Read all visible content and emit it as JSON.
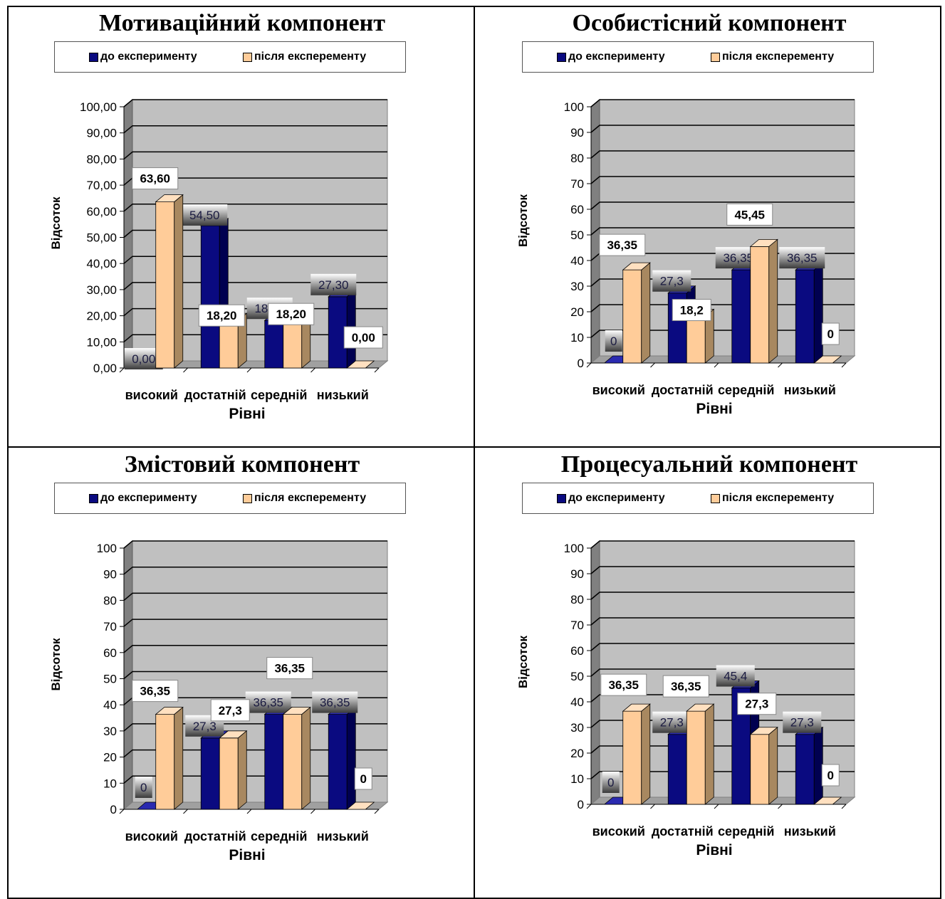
{
  "legend": {
    "before": "до експерименту",
    "after": "після експеременту",
    "before_color": "#0a0a80",
    "after_color": "#ffcc99"
  },
  "chart_data": [
    {
      "type": "bar",
      "title": "Мотиваційний компонент",
      "xlabel": "Рівні",
      "ylabel": "Відсоток",
      "categories": [
        "високий",
        "достатній",
        "середній",
        "низький"
      ],
      "ylim": [
        0,
        100
      ],
      "yticks": [
        "0,00",
        "10,00",
        "20,00",
        "30,00",
        "40,00",
        "50,00",
        "60,00",
        "70,00",
        "80,00",
        "90,00",
        "100,00"
      ],
      "series": [
        {
          "name": "до експерименту",
          "values": [
            0,
            54.5,
            18.2,
            27.3
          ],
          "labels": [
            "0,00",
            "54,50",
            "18,20",
            "27,30"
          ]
        },
        {
          "name": "після експеременту",
          "values": [
            63.6,
            18.2,
            18.2,
            0
          ],
          "labels": [
            "63,60",
            "18,20",
            "18,20",
            "0,00"
          ]
        }
      ]
    },
    {
      "type": "bar",
      "title": "Особистісний компонент",
      "xlabel": "Рівні",
      "ylabel": "Відсоток",
      "categories": [
        "високий",
        "достатній",
        "середній",
        "низький"
      ],
      "ylim": [
        0,
        100
      ],
      "yticks": [
        "0",
        "10",
        "20",
        "30",
        "40",
        "50",
        "60",
        "70",
        "80",
        "90",
        "100"
      ],
      "series": [
        {
          "name": "до експерименту",
          "values": [
            0,
            27.3,
            36.35,
            36.35
          ],
          "labels": [
            "0",
            "27,3",
            "36,35",
            "36,35"
          ]
        },
        {
          "name": "після експеременту",
          "values": [
            36.35,
            18.2,
            45.45,
            0
          ],
          "labels": [
            "36,35",
            "18,2",
            "45,45",
            "0"
          ]
        }
      ]
    },
    {
      "type": "bar",
      "title": "Змістовий компонент",
      "xlabel": "Рівні",
      "ylabel": "Відсоток",
      "categories": [
        "високий",
        "достатній",
        "середній",
        "низький"
      ],
      "ylim": [
        0,
        100
      ],
      "yticks": [
        "0",
        "10",
        "20",
        "30",
        "40",
        "50",
        "60",
        "70",
        "80",
        "90",
        "100"
      ],
      "series": [
        {
          "name": "до експерименту",
          "values": [
            0,
            27.3,
            36.35,
            36.35
          ],
          "labels": [
            "0",
            "27,3",
            "36,35",
            "36,35"
          ]
        },
        {
          "name": "після експеременту",
          "values": [
            36.35,
            27.3,
            36.35,
            0
          ],
          "labels": [
            "36,35",
            "27,3",
            "36,35",
            "0"
          ]
        }
      ]
    },
    {
      "type": "bar",
      "title": "Процесуальний компонент",
      "xlabel": "Рівні",
      "ylabel": "Відсоток",
      "categories": [
        "високий",
        "достатній",
        "середній",
        "низький"
      ],
      "ylim": [
        0,
        100
      ],
      "yticks": [
        "0",
        "10",
        "20",
        "30",
        "40",
        "50",
        "60",
        "70",
        "80",
        "90",
        "100"
      ],
      "series": [
        {
          "name": "до експерименту",
          "values": [
            0,
            27.3,
            45.4,
            27.3
          ],
          "labels": [
            "0",
            "27,3",
            "45,4",
            "27,3"
          ]
        },
        {
          "name": "після експеременту",
          "values": [
            36.35,
            36.35,
            27.3,
            0
          ],
          "labels": [
            "36,35",
            "36,35",
            "27,3",
            "0"
          ]
        }
      ]
    }
  ]
}
